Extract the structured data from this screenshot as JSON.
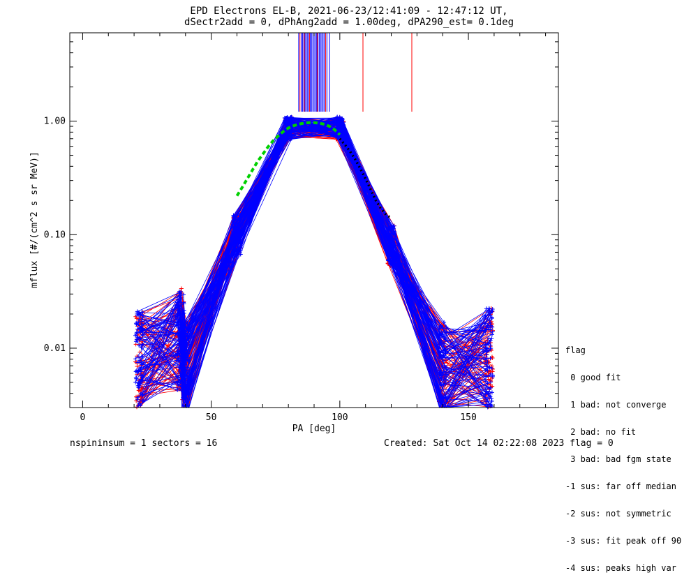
{
  "title_line1": "EPD Electrons EL-B, 2021-06-23/12:41:09 - 12:47:12 UT,",
  "title_line2": "dSectr2add = 0, dPhAng2add = 1.00deg, dPA290_est=   0.1deg",
  "footer": {
    "left": "nspininsum =  1  sectors = 16",
    "right": "Created: Sat Oct 14 02:22:08 2023   flag = 0"
  },
  "legend": {
    "title": "flag",
    "items": [
      " 0 good fit",
      " 1 bad: not converge",
      " 2 bad: no fit",
      " 3 bad: bad fgm state",
      "-1 sus: far off median",
      "-2 sus: not symmetric",
      "-3 sus: fit peak off 90",
      "-4 sus: peaks high var"
    ]
  },
  "colors": {
    "red": "#ff0000",
    "blue": "#0000ff",
    "green_fit": "#00d000",
    "black_fit": "#000000"
  },
  "chart_data": {
    "type": "line",
    "xlabel": "PA [deg]",
    "ylabel": "mflux [#/(cm^2 s sr MeV)]",
    "xlim": [
      -5,
      185
    ],
    "ylim": [
      0.003,
      6
    ],
    "yscale": "log",
    "xticks": [
      0,
      50,
      100,
      150
    ],
    "xtick_labels": [
      "0",
      "50",
      "100",
      "150"
    ],
    "yticks": [
      0.01,
      0.1,
      1.0
    ],
    "ytick_labels": [
      "0.01",
      "0.10",
      "1.00"
    ],
    "profile_pa": [
      22,
      38,
      40,
      60,
      80,
      100,
      120,
      140,
      158
    ],
    "profile_flux": [
      0.008,
      0.012,
      0.006,
      0.1,
      0.95,
      0.95,
      0.08,
      0.006,
      0.008
    ],
    "n_profiles_red": 70,
    "n_profiles_blue": 90,
    "green_fit": {
      "pa": [
        60,
        62,
        64,
        66,
        68,
        70,
        72,
        74,
        76,
        78,
        80,
        82,
        84,
        86,
        88,
        90,
        92,
        94,
        96,
        98,
        100
      ],
      "flux": [
        0.22,
        0.26,
        0.31,
        0.37,
        0.44,
        0.51,
        0.59,
        0.67,
        0.74,
        0.81,
        0.87,
        0.91,
        0.94,
        0.96,
        0.97,
        0.97,
        0.96,
        0.94,
        0.9,
        0.84,
        0.76
      ]
    },
    "black_fit": {
      "pa": [
        100,
        102,
        104,
        106,
        108,
        110,
        112,
        114,
        116,
        118,
        120
      ],
      "flux": [
        0.7,
        0.62,
        0.54,
        0.46,
        0.38,
        0.31,
        0.25,
        0.2,
        0.17,
        0.15,
        0.14
      ]
    },
    "peak_markers_blue_pa": [
      84,
      85,
      85.5,
      86,
      86.5,
      87,
      87.5,
      88,
      88.5,
      89,
      89.5,
      90,
      90.5,
      91,
      91.5,
      92,
      92.5,
      93,
      93.5,
      94,
      95,
      96
    ],
    "peak_markers_red_pa": [
      84.5,
      86.2,
      88.2,
      91.2,
      94.5,
      109,
      128
    ]
  }
}
